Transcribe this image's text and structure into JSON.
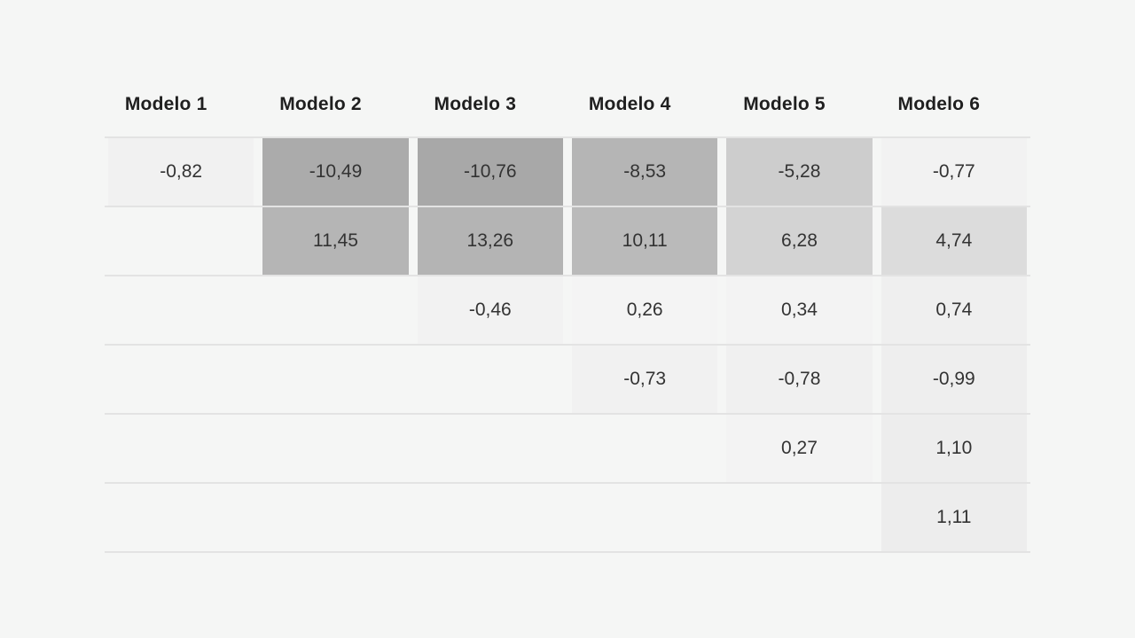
{
  "page": {
    "background_color": "#f5f6f5",
    "row_line_color": "#e3e3e3"
  },
  "table": {
    "columns": [
      "Modelo 1",
      "Modelo 2",
      "Modelo 3",
      "Modelo 4",
      "Modelo 5",
      "Modelo 6"
    ],
    "rows": [
      [
        {
          "text": "-0,82",
          "bg": "#f1f1f1"
        },
        {
          "text": "-10,49",
          "bg": "#ababab"
        },
        {
          "text": "-10,76",
          "bg": "#a8a8a8"
        },
        {
          "text": "-8,53",
          "bg": "#b5b5b5"
        },
        {
          "text": "-5,28",
          "bg": "#cdcdcd"
        },
        {
          "text": "-0,77",
          "bg": "#f2f2f2"
        }
      ],
      [
        {
          "text": "",
          "bg": null
        },
        {
          "text": "11,45",
          "bg": "#b5b5b5"
        },
        {
          "text": "13,26",
          "bg": "#b4b4b4"
        },
        {
          "text": "10,11",
          "bg": "#bababa"
        },
        {
          "text": "6,28",
          "bg": "#d3d3d3"
        },
        {
          "text": "4,74",
          "bg": "#dcdcdc"
        }
      ],
      [
        {
          "text": "",
          "bg": null
        },
        {
          "text": "",
          "bg": null
        },
        {
          "text": "-0,46",
          "bg": "#f2f2f2"
        },
        {
          "text": "0,26",
          "bg": "#f4f4f4"
        },
        {
          "text": "0,34",
          "bg": "#f3f3f3"
        },
        {
          "text": "0,74",
          "bg": "#efefef"
        }
      ],
      [
        {
          "text": "",
          "bg": null
        },
        {
          "text": "",
          "bg": null
        },
        {
          "text": "",
          "bg": null
        },
        {
          "text": "-0,73",
          "bg": "#f1f1f1"
        },
        {
          "text": "-0,78",
          "bg": "#f0f0f0"
        },
        {
          "text": "-0,99",
          "bg": "#eeeeee"
        }
      ],
      [
        {
          "text": "",
          "bg": null
        },
        {
          "text": "",
          "bg": null
        },
        {
          "text": "",
          "bg": null
        },
        {
          "text": "",
          "bg": null
        },
        {
          "text": "0,27",
          "bg": "#f3f3f3"
        },
        {
          "text": "1,10",
          "bg": "#ededed"
        }
      ],
      [
        {
          "text": "",
          "bg": null
        },
        {
          "text": "",
          "bg": null
        },
        {
          "text": "",
          "bg": null
        },
        {
          "text": "",
          "bg": null
        },
        {
          "text": "",
          "bg": null
        },
        {
          "text": "1,11",
          "bg": "#ededed"
        }
      ]
    ]
  },
  "chart_data": {
    "type": "heatmap",
    "title": "",
    "categories": [
      "Modelo 1",
      "Modelo 2",
      "Modelo 3",
      "Modelo 4",
      "Modelo 5",
      "Modelo 6"
    ],
    "matrix": [
      [
        -0.82,
        -10.49,
        -10.76,
        -8.53,
        -5.28,
        -0.77
      ],
      [
        null,
        11.45,
        13.26,
        10.11,
        6.28,
        4.74
      ],
      [
        null,
        null,
        -0.46,
        0.26,
        0.34,
        0.74
      ],
      [
        null,
        null,
        null,
        -0.73,
        -0.78,
        -0.99
      ],
      [
        null,
        null,
        null,
        null,
        0.27,
        1.1
      ],
      [
        null,
        null,
        null,
        null,
        null,
        1.11
      ]
    ],
    "decimal_separator": ",",
    "legend_position": "none",
    "grid": "horizontal-lines-only",
    "shading": "darker gray = larger magnitude; upper-triangular layout (column k filled through row k)"
  }
}
